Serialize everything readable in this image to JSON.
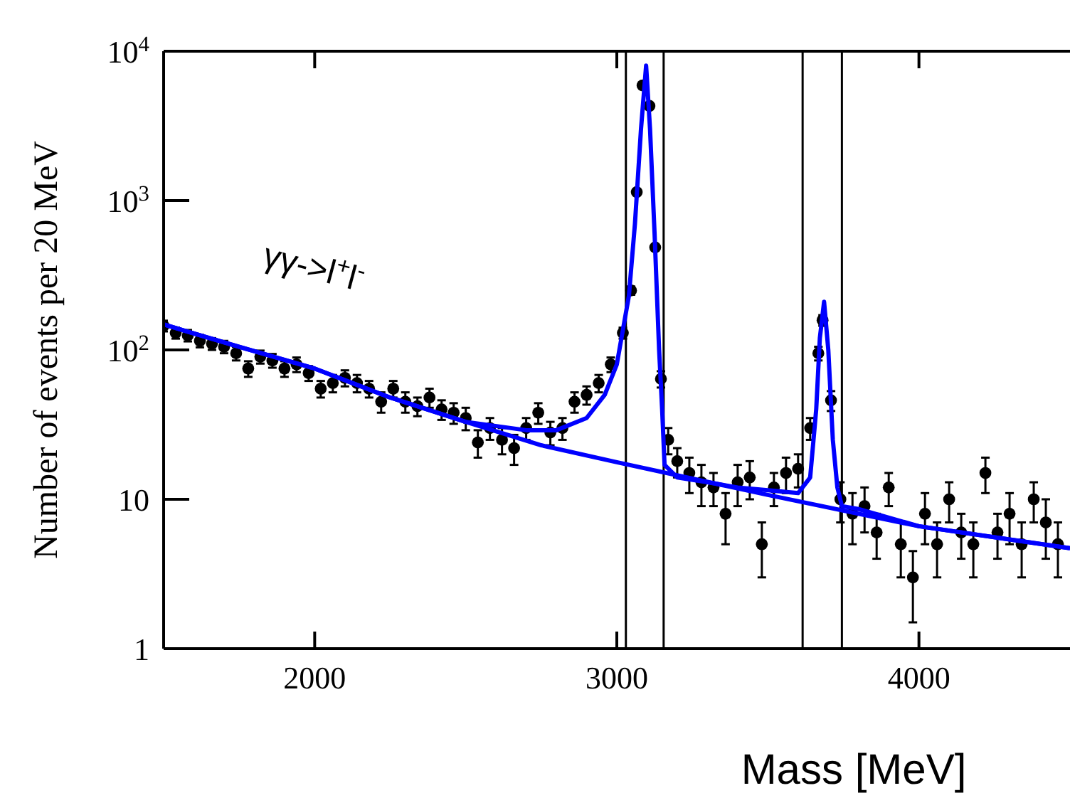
{
  "chart_data": {
    "type": "scatter",
    "ylabel": "Number of events per 20 MeV",
    "xlabel": "Mass [MeV]",
    "log": "y",
    "grid": false,
    "xlim": [
      1500,
      4500
    ],
    "xticks": [
      2000,
      3000,
      4000
    ],
    "ylim": [
      1,
      10000
    ],
    "yticks": [
      {
        "value": 1,
        "label": "1"
      },
      {
        "value": 10,
        "label": "10"
      },
      {
        "value": 100,
        "label": "10$^{2}$"
      },
      {
        "value": 1000,
        "label": "10$^{3}$"
      },
      {
        "value": 10000,
        "label": "10$^{4}$"
      }
    ],
    "annotations": [
      "γγ->l$^{+}$l$^{-}$"
    ],
    "ref_lines": [
      {
        "axis": "x",
        "value": 3030,
        "color": "#000000"
      },
      {
        "axis": "x",
        "value": 3155,
        "color": "#000000"
      },
      {
        "axis": "x",
        "value": 3615,
        "color": "#000000"
      },
      {
        "axis": "x",
        "value": 3745,
        "color": "#000000"
      }
    ],
    "series": [
      {
        "marker": "circle",
        "color": "#000000",
        "x": [
          1500,
          1540,
          1580,
          1620,
          1660,
          1700,
          1740,
          1780,
          1820,
          1860,
          1900,
          1940,
          1980,
          2020,
          2060,
          2100,
          2140,
          2180,
          2220,
          2260,
          2300,
          2340,
          2380,
          2420,
          2460,
          2500,
          2540,
          2580,
          2620,
          2660,
          2700,
          2740,
          2780,
          2820,
          2860,
          2900,
          2940,
          2980,
          3020,
          3047,
          3066,
          3085,
          3108,
          3127,
          3146,
          3170,
          3200,
          3240,
          3280,
          3320,
          3360,
          3400,
          3440,
          3480,
          3520,
          3560,
          3600,
          3640,
          3667,
          3681,
          3709,
          3740,
          3780,
          3820,
          3860,
          3900,
          3940,
          3980,
          4020,
          4060,
          4100,
          4140,
          4180,
          4220,
          4260,
          4300,
          4340,
          4380,
          4420,
          4460
        ],
        "values": [
          145,
          130,
          125,
          115,
          110,
          105,
          95,
          75,
          90,
          85,
          75,
          80,
          70,
          55,
          60,
          65,
          60,
          55,
          45,
          55,
          45,
          42,
          48,
          40,
          38,
          35,
          24,
          30,
          25,
          22,
          30,
          38,
          28,
          30,
          45,
          50,
          60,
          80,
          130,
          250,
          1140,
          5900,
          4300,
          486,
          64,
          25,
          18,
          15,
          13,
          12,
          8,
          13,
          14,
          5,
          12,
          15,
          16,
          30,
          95,
          158,
          46,
          10,
          8,
          9,
          6,
          12,
          5,
          3,
          8,
          5,
          10,
          6,
          5,
          15,
          6,
          8,
          5,
          10,
          7,
          5
        ],
        "errors": [
          12,
          11,
          11,
          11,
          10,
          10,
          10,
          9,
          9,
          9,
          9,
          9,
          8,
          7,
          8,
          8,
          8,
          7,
          7,
          7,
          7,
          6,
          7,
          6,
          6,
          6,
          5,
          5,
          5,
          5,
          5,
          6,
          5,
          5,
          7,
          7,
          8,
          9,
          11,
          16,
          34,
          77,
          66,
          22,
          8,
          5,
          4,
          4,
          4,
          3,
          3,
          4,
          4,
          2,
          3,
          4,
          4,
          5,
          10,
          13,
          7,
          3,
          3,
          3,
          2,
          3,
          2,
          1.5,
          3,
          2,
          3,
          2,
          2,
          4,
          2,
          3,
          2,
          3,
          3,
          2
        ]
      },
      {
        "type": "line",
        "color": "#0000ff",
        "x": [
          1500,
          1750,
          2000,
          2250,
          2500,
          2700,
          2800,
          2900,
          2960,
          3000,
          3040,
          3060,
          3080,
          3097,
          3110,
          3125,
          3140,
          3150,
          3158,
          3200,
          3300,
          3400,
          3500,
          3600,
          3640,
          3660,
          3672,
          3686,
          3700,
          3715,
          3730,
          3745,
          3800,
          4000,
          4500
        ],
        "values": [
          148,
          105,
          75,
          48,
          33,
          29,
          29,
          35,
          50,
          80,
          230,
          700,
          3000,
          8000,
          3000,
          600,
          100,
          40,
          17,
          14,
          13,
          12,
          11.5,
          11,
          14,
          40,
          120,
          210,
          100,
          25,
          12,
          9,
          8.6,
          6.6,
          4.7
        ]
      },
      {
        "type": "line",
        "color": "#0000ff",
        "x": [
          1500,
          1750,
          2000,
          2250,
          2500,
          2750,
          3000,
          3500,
          4000,
          4500
        ],
        "values": [
          148,
          105,
          75,
          48,
          33,
          23,
          17.7,
          10.7,
          6.6,
          4.7
        ]
      }
    ]
  }
}
